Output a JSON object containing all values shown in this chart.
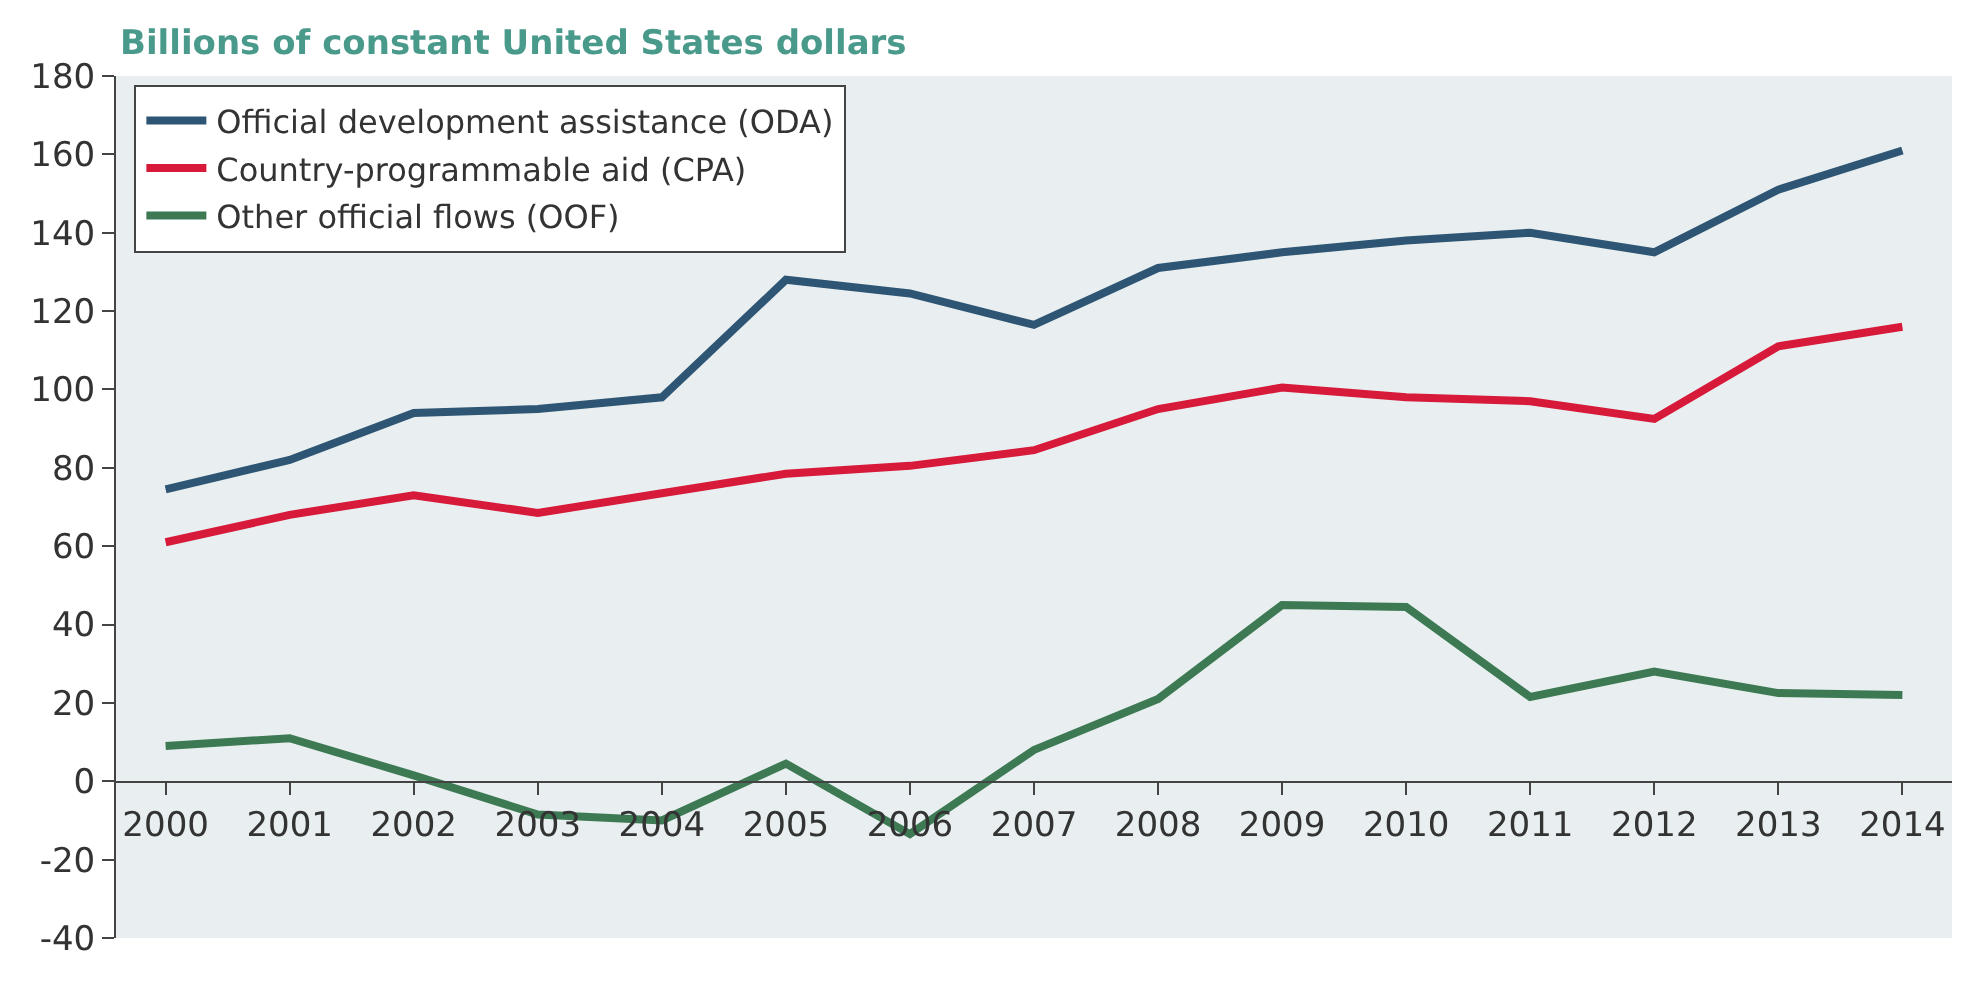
{
  "chart_data": {
    "type": "line",
    "ylabel": "Billions of constant United States dollars",
    "categories": [
      "2000",
      "2001",
      "2002",
      "2003",
      "2004",
      "2005",
      "2006",
      "2007",
      "2008",
      "2009",
      "2010",
      "2011",
      "2012",
      "2013",
      "2014"
    ],
    "series": [
      {
        "name": "Official development assistance (ODA)",
        "color": "#2e5573",
        "values": [
          74.5,
          82,
          94,
          95,
          98,
          128,
          124.5,
          116.5,
          131,
          135,
          138,
          140,
          135,
          151,
          161
        ]
      },
      {
        "name": "Country-programmable aid (CPA)",
        "color": "#d7193a",
        "values": [
          61,
          68,
          73,
          68.5,
          73.5,
          78.5,
          80.5,
          84.5,
          95,
          100.5,
          98,
          97,
          92.5,
          111,
          116
        ]
      },
      {
        "name": "Other official flows (OOF)",
        "color": "#3d7a54",
        "values": [
          9,
          11,
          1.5,
          -8.5,
          -10,
          4.5,
          -13.5,
          8,
          21,
          45,
          44.5,
          21.5,
          28,
          22.5,
          22
        ]
      }
    ],
    "ylim": [
      -40,
      180
    ],
    "yticks": [
      -40,
      -20,
      0,
      20,
      40,
      60,
      80,
      100,
      120,
      140,
      160,
      180
    ],
    "grid": false,
    "legend": "top left",
    "marker": "none",
    "line_style": "solid"
  }
}
